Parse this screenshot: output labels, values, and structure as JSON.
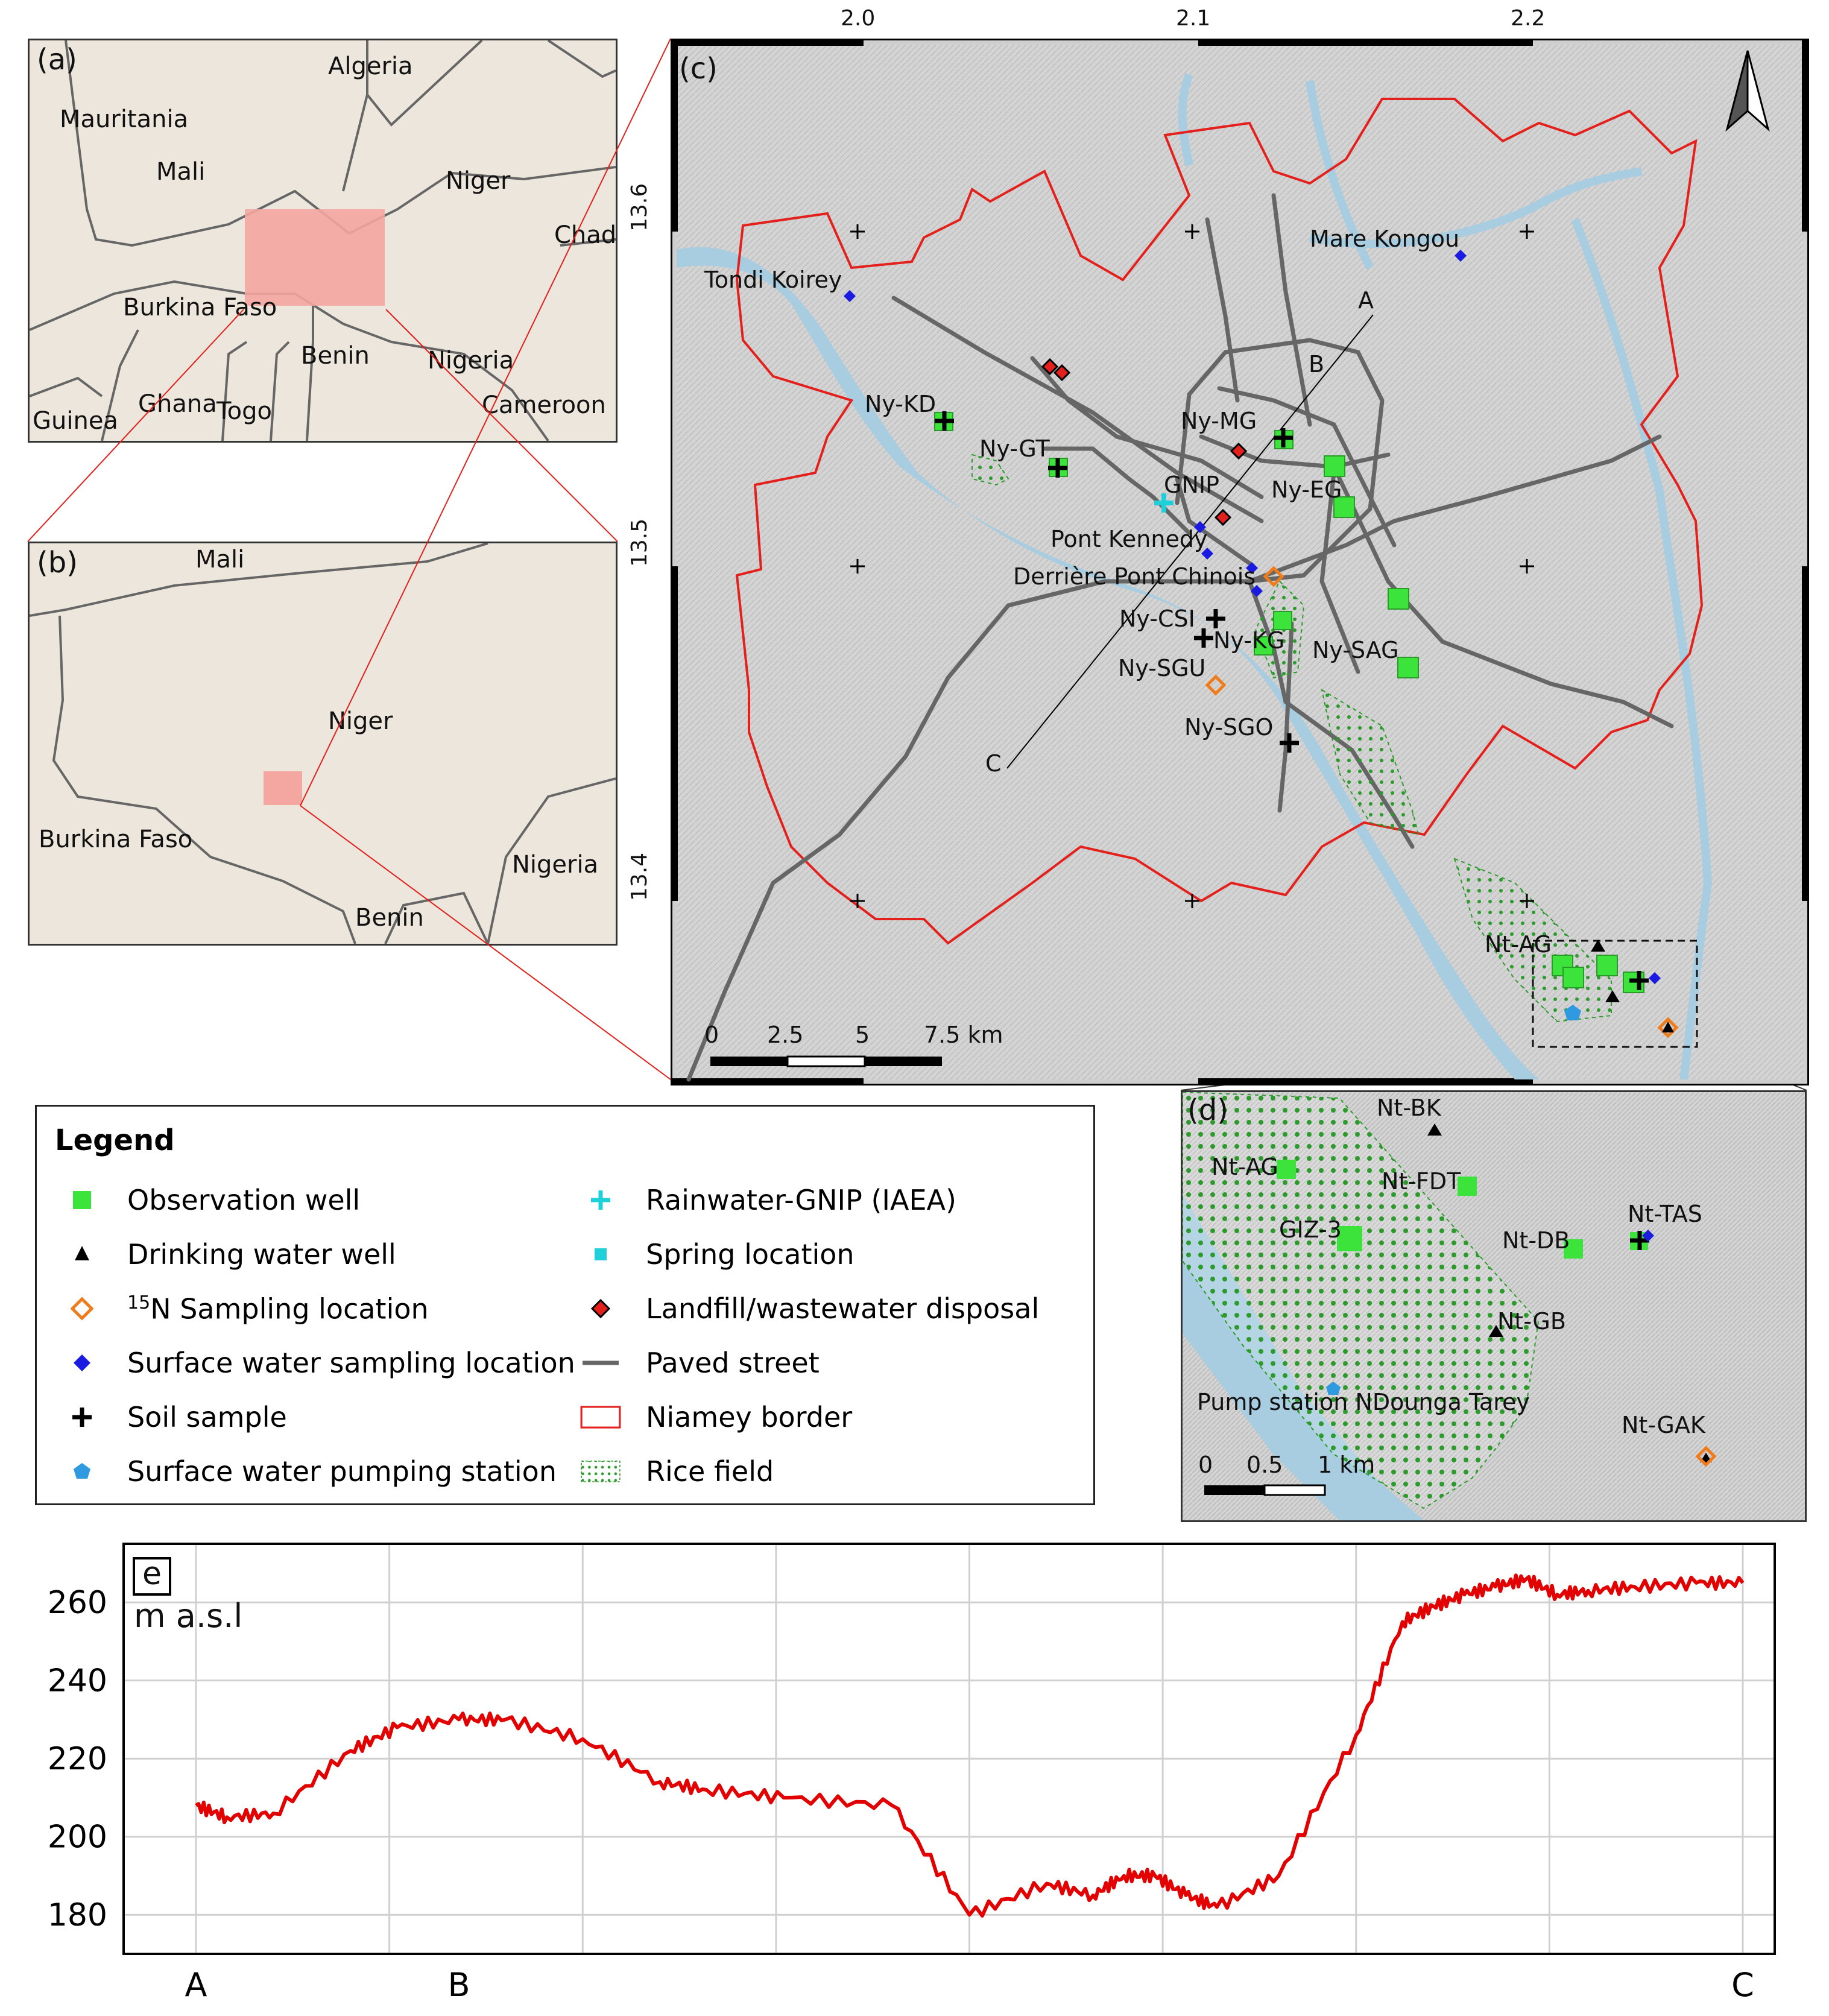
{
  "panel_a": {
    "label": "(a)",
    "countries": [
      "Algeria",
      "Mauritania",
      "Mali",
      "Niger",
      "Chad",
      "Burkina Faso",
      "Benin",
      "Nigeria",
      "Ghana",
      "Togo",
      "Guinea",
      "Cameroon"
    ]
  },
  "panel_b": {
    "label": "(b)",
    "countries": [
      "Mali",
      "Niger",
      "Burkina Faso",
      "Nigeria",
      "Benin"
    ]
  },
  "panel_c": {
    "label": "(c)",
    "lon_ticks": [
      "2.0",
      "2.1",
      "2.2"
    ],
    "lat_ticks": [
      "13.6",
      "13.5",
      "13.4"
    ],
    "profile_points": [
      "A",
      "B",
      "C"
    ],
    "places": [
      "Tondi Koirey",
      "Mare Kongou",
      "Ny-KD",
      "Ny-GT",
      "Ny-MG",
      "GNIP",
      "Ny-EG",
      "Pont Kennedy",
      "Derrière Pont Chinois",
      "Ny-CSI",
      "Ny-KG",
      "Ny-SGU",
      "Ny-SAG",
      "Ny-SGO",
      "Nt-AG"
    ],
    "scalebar": {
      "ticks": [
        "0",
        "2.5",
        "5",
        "7.5 km"
      ]
    },
    "north_arrow": "north-arrow-icon"
  },
  "panel_d": {
    "label": "(d)",
    "places": [
      "Nt-BK",
      "Nt-AG",
      "Nt-FDT",
      "GIZ-3",
      "Nt-TAS",
      "Nt-DB",
      "Nt-GB",
      "Pump station NDounga Tarey",
      "Nt-GAK"
    ],
    "scalebar": {
      "ticks": [
        "0",
        "0.5",
        "1 km"
      ]
    }
  },
  "legend": {
    "title": "Legend",
    "items": [
      {
        "label": "Observation well",
        "symbol": "green-square"
      },
      {
        "label": "Drinking water well",
        "symbol": "black-triangle"
      },
      {
        "label_sup": "15",
        "label": "N Sampling location",
        "symbol": "orange-hollow-diamond"
      },
      {
        "label": "Surface water sampling location",
        "symbol": "blue-diamond"
      },
      {
        "label": "Soil sample",
        "symbol": "black-cross"
      },
      {
        "label": "Surface water pumping station",
        "symbol": "blue-pentagon"
      },
      {
        "label": "Rainwater-GNIP (IAEA)",
        "symbol": "cyan-cross"
      },
      {
        "label": "Spring location",
        "symbol": "cyan-square"
      },
      {
        "label": "Landfill/wastewater disposal",
        "symbol": "red-diamond"
      },
      {
        "label": "Paved street",
        "symbol": "grey-line"
      },
      {
        "label": "Niamey border",
        "symbol": "red-outline-box"
      },
      {
        "label": "Rice field",
        "symbol": "green-dotted-box"
      }
    ]
  },
  "colors": {
    "water": "#a9cde0",
    "border": "#e3201b",
    "street": "#666666",
    "obs_well": "#3be33b",
    "terrain": "#d8d8d8",
    "basemap_land": "#ece6dc",
    "highlight": "#f4a6a0",
    "profile_line": "#e30000"
  },
  "panel_e": {
    "label": "e",
    "ylabel": "m a.s.l",
    "xticks": [
      "A",
      "B",
      "C"
    ],
    "yticks": [
      "180",
      "200",
      "220",
      "240",
      "260"
    ]
  },
  "chart_data": {
    "type": "line",
    "ylabel": "m a.s.l",
    "x_labels": [
      "A",
      "B",
      "C"
    ],
    "ylim": [
      170,
      275
    ],
    "x": [
      0,
      0.02,
      0.05,
      0.1,
      0.13,
      0.17,
      0.2,
      0.25,
      0.3,
      0.33,
      0.38,
      0.45,
      0.5,
      0.55,
      0.58,
      0.6,
      0.62,
      0.64,
      0.66,
      0.7,
      0.75,
      0.78,
      0.8,
      0.82,
      0.84,
      0.86,
      0.88,
      0.9,
      0.93,
      0.97,
      1.0
    ],
    "series": [
      {
        "values": [
          208,
          205,
          206,
          222,
          228,
          230,
          230,
          225,
          214,
          212,
          210,
          208,
          180,
          188,
          185,
          190,
          190,
          185,
          182,
          190,
          226,
          255,
          259,
          262,
          264,
          266,
          262,
          263,
          264,
          265,
          265
        ]
      }
    ],
    "grid": true
  }
}
